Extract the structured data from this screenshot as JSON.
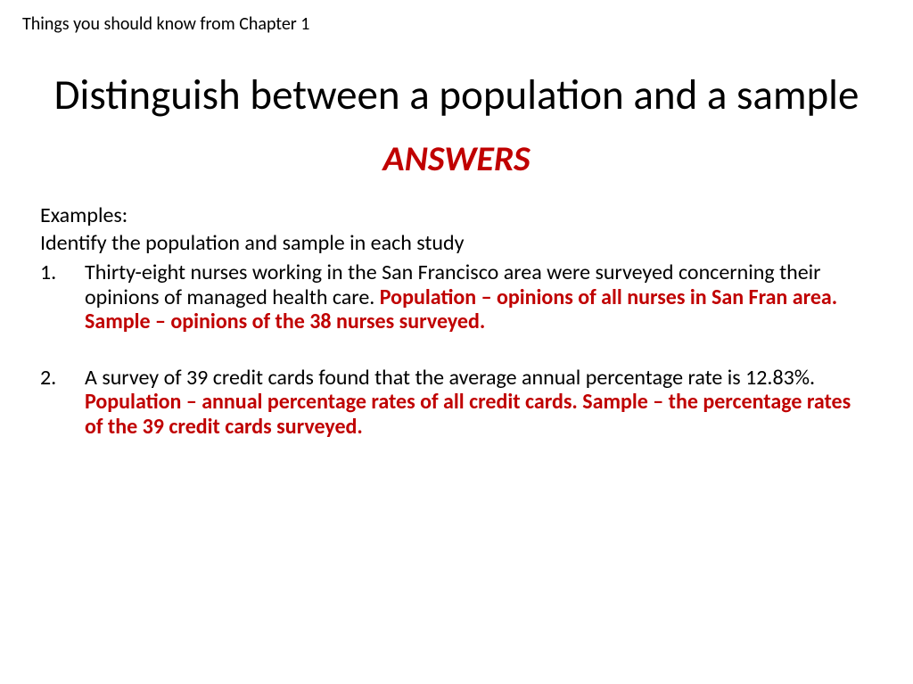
{
  "header": {
    "note": "Things you should know from Chapter 1"
  },
  "title": "Distinguish between a population and a sample",
  "answers_label": "ANSWERS",
  "examples_label": "Examples:",
  "instruction": "Identify the population and sample in each study",
  "items": [
    {
      "number": "1.",
      "question": "Thirty-eight nurses working in the San Francisco area were surveyed concerning their opinions of managed health care.  ",
      "answer": "Population – opinions of all nurses in San Fran area.  Sample – opinions of the 38 nurses surveyed."
    },
    {
      "number": "2.",
      "question": "A survey of 39 credit cards found that the average annual percentage rate is 12.83%.  ",
      "answer": "Population – annual percentage rates of all credit cards.  Sample – the percentage rates of the 39 credit cards surveyed."
    }
  ],
  "colors": {
    "answer_color": "#c00000",
    "text_color": "#000000",
    "background_color": "#ffffff"
  }
}
